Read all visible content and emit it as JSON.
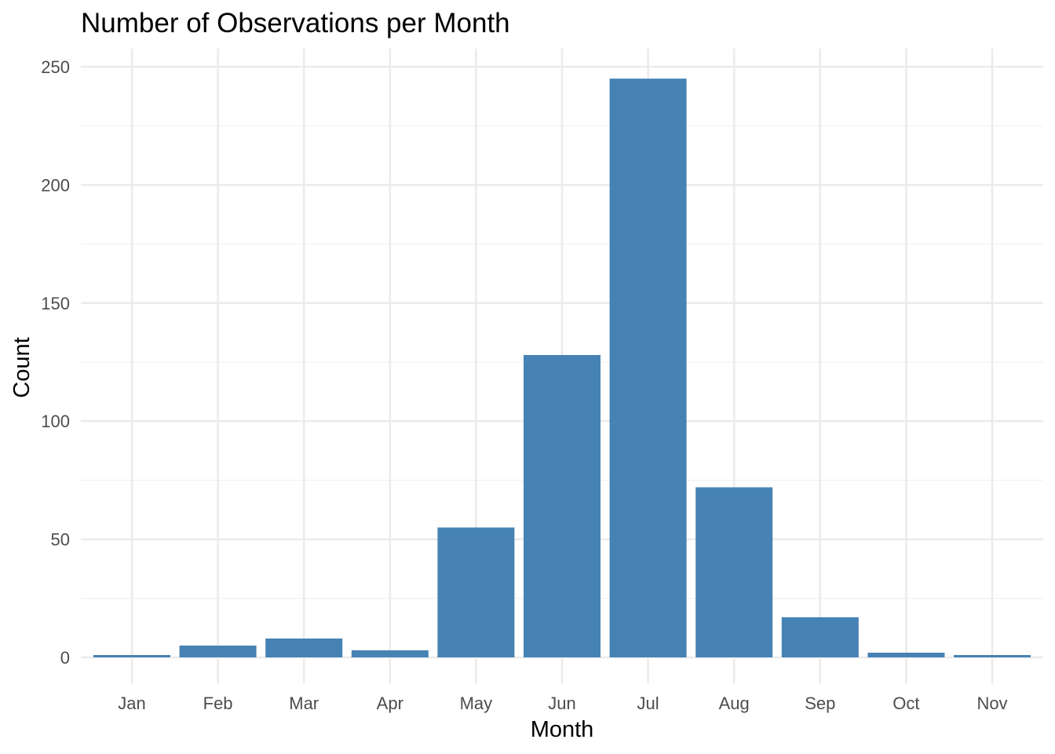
{
  "chart_data": {
    "type": "bar",
    "title": "Number of Observations per Month",
    "xlabel": "Month",
    "ylabel": "Count",
    "categories": [
      "Jan",
      "Feb",
      "Mar",
      "Apr",
      "May",
      "Jun",
      "Jul",
      "Aug",
      "Sep",
      "Oct",
      "Nov"
    ],
    "values": [
      1,
      5,
      8,
      3,
      55,
      128,
      245,
      72,
      17,
      2,
      1
    ],
    "yticks": [
      0,
      50,
      100,
      150,
      200,
      250
    ],
    "ylim": [
      0,
      257
    ],
    "grid": true,
    "bar_color": "#4682b4",
    "background_color": "#ffffff"
  }
}
